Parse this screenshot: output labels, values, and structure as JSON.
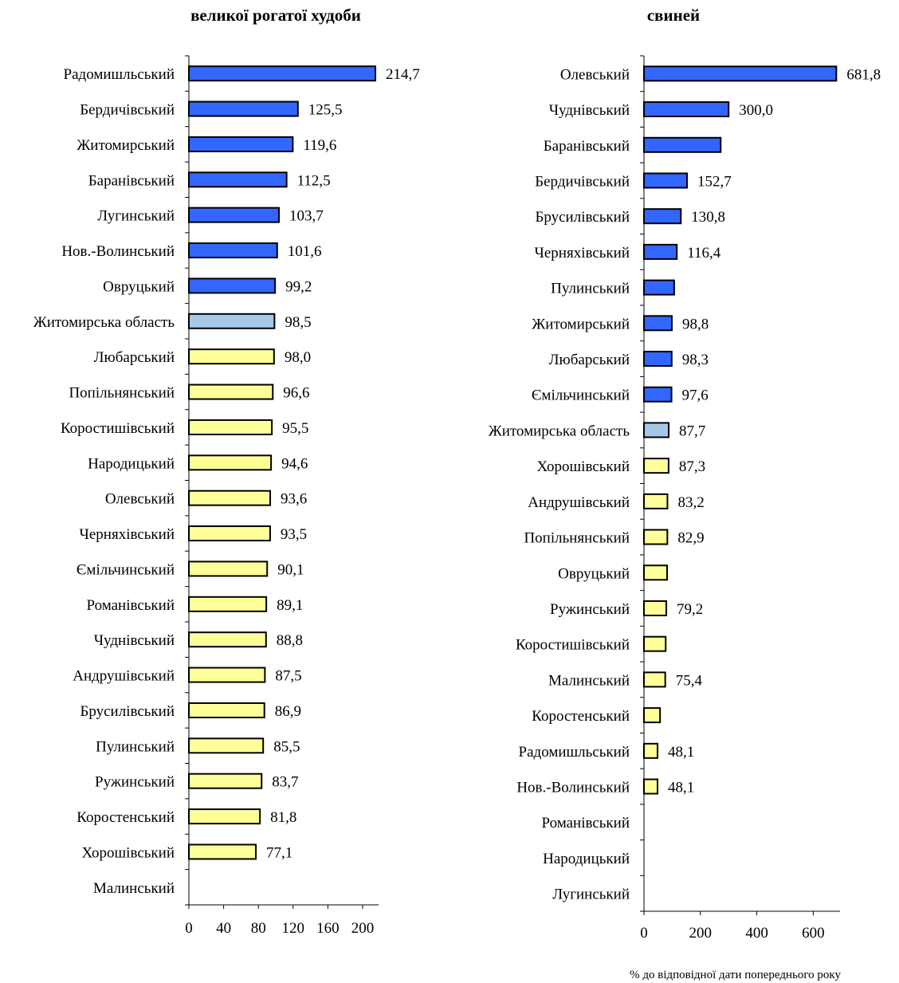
{
  "colors": {
    "above": "#3366ff",
    "region": "#a6c8e8",
    "below": "#ffff99",
    "stroke": "#000000"
  },
  "footnote": "% до відповідної дати попереднього року",
  "chart_data": [
    {
      "type": "bar",
      "orientation": "horizontal",
      "title": "великої рогатої худоби",
      "xlim": [
        0,
        220
      ],
      "xticks": [
        "0",
        "40",
        "80",
        "120",
        "160",
        "200"
      ],
      "xtick_values": [
        0,
        40,
        80,
        120,
        160,
        200
      ],
      "bars": [
        {
          "label": "Радомишльський",
          "value": 214.7,
          "text": "214,7",
          "color": "above"
        },
        {
          "label": "Бердичівський",
          "value": 125.5,
          "text": "125,5",
          "color": "above"
        },
        {
          "label": "Житомирський",
          "value": 119.6,
          "text": "119,6",
          "color": "above"
        },
        {
          "label": "Баранівський",
          "value": 112.5,
          "text": "112,5",
          "color": "above"
        },
        {
          "label": "Лугинський",
          "value": 103.7,
          "text": "103,7",
          "color": "above"
        },
        {
          "label": "Нов.-Волинський",
          "value": 101.6,
          "text": "101,6",
          "color": "above"
        },
        {
          "label": "Овруцький",
          "value": 99.2,
          "text": "99,2",
          "color": "above"
        },
        {
          "label": "Житомирська область",
          "value": 98.5,
          "text": "98,5",
          "color": "region"
        },
        {
          "label": "Любарський",
          "value": 98.0,
          "text": "98,0",
          "color": "below"
        },
        {
          "label": "Попільнянський",
          "value": 96.6,
          "text": "96,6",
          "color": "below"
        },
        {
          "label": "Коростишівський",
          "value": 95.5,
          "text": "95,5",
          "color": "below"
        },
        {
          "label": "Народицький",
          "value": 94.6,
          "text": "94,6",
          "color": "below"
        },
        {
          "label": "Олевський",
          "value": 93.6,
          "text": "93,6",
          "color": "below"
        },
        {
          "label": "Черняхівський",
          "value": 93.5,
          "text": "93,5",
          "color": "below"
        },
        {
          "label": "Ємільчинський",
          "value": 90.1,
          "text": "90,1",
          "color": "below"
        },
        {
          "label": "Романівський",
          "value": 89.1,
          "text": "89,1",
          "color": "below"
        },
        {
          "label": "Чуднівський",
          "value": 88.8,
          "text": "88,8",
          "color": "below"
        },
        {
          "label": "Андрушівський",
          "value": 87.5,
          "text": "87,5",
          "color": "below"
        },
        {
          "label": "Брусилівський",
          "value": 86.9,
          "text": "86,9",
          "color": "below"
        },
        {
          "label": "Пулинський",
          "value": 85.5,
          "text": "85,5",
          "color": "below"
        },
        {
          "label": "Ружинський",
          "value": 83.7,
          "text": "83,7",
          "color": "below"
        },
        {
          "label": "Коростенський",
          "value": 81.8,
          "text": "81,8",
          "color": "below"
        },
        {
          "label": "Хорошівський",
          "value": 77.1,
          "text": "77,1",
          "color": "below"
        },
        {
          "label": "Малинський",
          "value": null,
          "text": "",
          "color": "below"
        }
      ]
    },
    {
      "type": "bar",
      "orientation": "horizontal",
      "title": "свиней",
      "xlim": [
        0,
        700
      ],
      "xticks": [
        "0",
        "200",
        "400",
        "600"
      ],
      "xtick_values": [
        0,
        200,
        400,
        600
      ],
      "bars": [
        {
          "label": "Олевський",
          "value": 681.8,
          "text": "681,8",
          "color": "above"
        },
        {
          "label": "Чуднівський",
          "value": 300.0,
          "text": "300,0",
          "color": "above"
        },
        {
          "label": "Баранівський",
          "value": 272,
          "text": "",
          "color": "above"
        },
        {
          "label": "Бердичівський",
          "value": 152.7,
          "text": "152,7",
          "color": "above"
        },
        {
          "label": "Брусилівський",
          "value": 130.8,
          "text": "130,8",
          "color": "above"
        },
        {
          "label": "Черняхівський",
          "value": 116.4,
          "text": "116,4",
          "color": "above"
        },
        {
          "label": "Пулинський",
          "value": 107,
          "text": "",
          "color": "above"
        },
        {
          "label": "Житомирський",
          "value": 98.8,
          "text": "98,8",
          "color": "above"
        },
        {
          "label": "Любарський",
          "value": 98.3,
          "text": "98,3",
          "color": "above"
        },
        {
          "label": "Ємільчинський",
          "value": 97.6,
          "text": "97,6",
          "color": "above"
        },
        {
          "label": "Житомирська область",
          "value": 87.7,
          "text": "87,7",
          "color": "region"
        },
        {
          "label": "Хорошівський",
          "value": 87.3,
          "text": "87,3",
          "color": "below"
        },
        {
          "label": "Андрушівський",
          "value": 83.2,
          "text": "83,2",
          "color": "below"
        },
        {
          "label": "Попільнянський",
          "value": 82.9,
          "text": "82,9",
          "color": "below"
        },
        {
          "label": "Овруцький",
          "value": 82,
          "text": "",
          "color": "below"
        },
        {
          "label": "Ружинський",
          "value": 79.2,
          "text": "79,2",
          "color": "below"
        },
        {
          "label": "Коростишівський",
          "value": 77,
          "text": "",
          "color": "below"
        },
        {
          "label": "Малинський",
          "value": 75.4,
          "text": "75,4",
          "color": "below"
        },
        {
          "label": "Коростенський",
          "value": 57,
          "text": "",
          "color": "below"
        },
        {
          "label": "Радомишльський",
          "value": 48.1,
          "text": "48,1",
          "color": "below"
        },
        {
          "label": "Нов.-Волинський",
          "value": 48.1,
          "text": "48,1",
          "color": "below"
        },
        {
          "label": "Романівський",
          "value": null,
          "text": "",
          "color": "below"
        },
        {
          "label": "Народицький",
          "value": null,
          "text": "",
          "color": "below"
        },
        {
          "label": "Лугинський",
          "value": null,
          "text": "",
          "color": "below"
        }
      ]
    }
  ]
}
